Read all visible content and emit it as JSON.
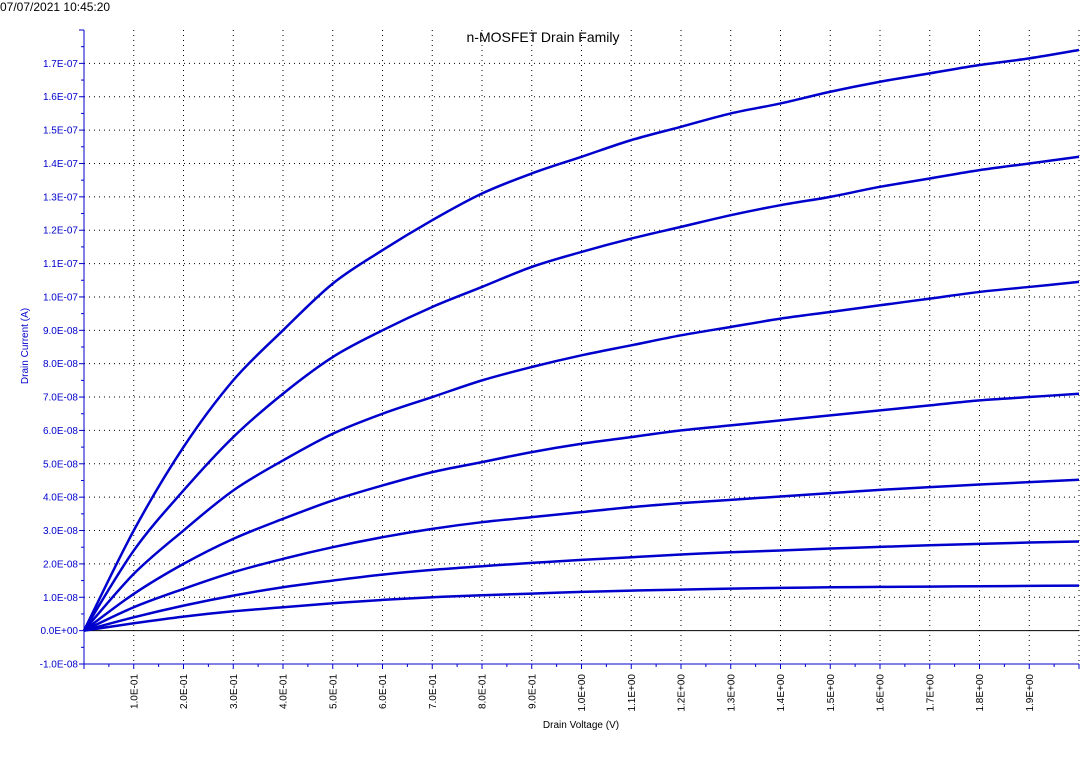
{
  "timestamp": "07/07/2021 10:45:20",
  "chart_data": {
    "type": "line",
    "title": "n-MOSFET Drain Family",
    "xlabel": "Drain Voltage (V)",
    "ylabel": "Drain Current (A)",
    "xlim": [
      0,
      2.0
    ],
    "ylim": [
      -1e-08,
      1.8e-07
    ],
    "grid": true,
    "line_color": "#0000cc",
    "axis_color": "#0000cc",
    "x_ticks": [
      {
        "value": 0.1,
        "label": "1.0E-01"
      },
      {
        "value": 0.2,
        "label": "2.0E-01"
      },
      {
        "value": 0.3,
        "label": "3.0E-01"
      },
      {
        "value": 0.4,
        "label": "4.0E-01"
      },
      {
        "value": 0.5,
        "label": "5.0E-01"
      },
      {
        "value": 0.6,
        "label": "6.0E-01"
      },
      {
        "value": 0.7,
        "label": "7.0E-01"
      },
      {
        "value": 0.8,
        "label": "8.0E-01"
      },
      {
        "value": 0.9,
        "label": "9.0E-01"
      },
      {
        "value": 1.0,
        "label": "1.0E+00"
      },
      {
        "value": 1.1,
        "label": "1.1E+00"
      },
      {
        "value": 1.2,
        "label": "1.2E+00"
      },
      {
        "value": 1.3,
        "label": "1.3E+00"
      },
      {
        "value": 1.4,
        "label": "1.4E+00"
      },
      {
        "value": 1.5,
        "label": "1.5E+00"
      },
      {
        "value": 1.6,
        "label": "1.6E+00"
      },
      {
        "value": 1.7,
        "label": "1.7E+00"
      },
      {
        "value": 1.8,
        "label": "1.8E+00"
      },
      {
        "value": 1.9,
        "label": "1.9E+00"
      }
    ],
    "y_ticks": [
      {
        "value": -1e-08,
        "label": "-1.0E-08"
      },
      {
        "value": 0,
        "label": "0.0E+00"
      },
      {
        "value": 1e-08,
        "label": "1.0E-08"
      },
      {
        "value": 2e-08,
        "label": "2.0E-08"
      },
      {
        "value": 3e-08,
        "label": "3.0E-08"
      },
      {
        "value": 4e-08,
        "label": "4.0E-08"
      },
      {
        "value": 5e-08,
        "label": "5.0E-08"
      },
      {
        "value": 6e-08,
        "label": "6.0E-08"
      },
      {
        "value": 7e-08,
        "label": "7.0E-08"
      },
      {
        "value": 8e-08,
        "label": "8.0E-08"
      },
      {
        "value": 9e-08,
        "label": "9.0E-08"
      },
      {
        "value": 1e-07,
        "label": "1.0E-07"
      },
      {
        "value": 1.1e-07,
        "label": "1.1E-07"
      },
      {
        "value": 1.2e-07,
        "label": "1.2E-07"
      },
      {
        "value": 1.3e-07,
        "label": "1.3E-07"
      },
      {
        "value": 1.4e-07,
        "label": "1.4E-07"
      },
      {
        "value": 1.5e-07,
        "label": "1.5E-07"
      },
      {
        "value": 1.6e-07,
        "label": "1.6E-07"
      },
      {
        "value": 1.7e-07,
        "label": "1.7E-07"
      }
    ],
    "x": [
      0,
      0.1,
      0.2,
      0.3,
      0.4,
      0.5,
      0.6,
      0.7,
      0.8,
      0.9,
      1.0,
      1.1,
      1.2,
      1.3,
      1.4,
      1.5,
      1.6,
      1.7,
      1.8,
      1.9,
      2.0
    ],
    "series": [
      {
        "values": [
          0,
          3e-08,
          5.5e-08,
          7.5e-08,
          9e-08,
          1.04e-07,
          1.14e-07,
          1.23e-07,
          1.31e-07,
          1.37e-07,
          1.42e-07,
          1.47e-07,
          1.51e-07,
          1.55e-07,
          1.58e-07,
          1.615e-07,
          1.645e-07,
          1.67e-07,
          1.695e-07,
          1.715e-07,
          1.74e-07
        ]
      },
      {
        "values": [
          0,
          2.4e-08,
          4.2e-08,
          5.8e-08,
          7.1e-08,
          8.2e-08,
          9e-08,
          9.7e-08,
          1.03e-07,
          1.09e-07,
          1.135e-07,
          1.175e-07,
          1.21e-07,
          1.245e-07,
          1.275e-07,
          1.3e-07,
          1.33e-07,
          1.355e-07,
          1.38e-07,
          1.4e-07,
          1.42e-07
        ]
      },
      {
        "values": [
          0,
          1.7e-08,
          3e-08,
          4.2e-08,
          5.1e-08,
          5.9e-08,
          6.5e-08,
          7e-08,
          7.5e-08,
          7.9e-08,
          8.25e-08,
          8.55e-08,
          8.85e-08,
          9.1e-08,
          9.35e-08,
          9.55e-08,
          9.75e-08,
          9.95e-08,
          1.015e-07,
          1.03e-07,
          1.045e-07
        ]
      },
      {
        "values": [
          0,
          1.1e-08,
          2e-08,
          2.75e-08,
          3.35e-08,
          3.9e-08,
          4.35e-08,
          4.75e-08,
          5.05e-08,
          5.35e-08,
          5.6e-08,
          5.8e-08,
          6e-08,
          6.15e-08,
          6.3e-08,
          6.45e-08,
          6.6e-08,
          6.75e-08,
          6.9e-08,
          7e-08,
          7.1e-08
        ]
      },
      {
        "values": [
          0,
          7e-09,
          1.25e-08,
          1.75e-08,
          2.15e-08,
          2.5e-08,
          2.8e-08,
          3.05e-08,
          3.25e-08,
          3.4e-08,
          3.55e-08,
          3.7e-08,
          3.82e-08,
          3.92e-08,
          4.02e-08,
          4.12e-08,
          4.22e-08,
          4.3e-08,
          4.38e-08,
          4.45e-08,
          4.52e-08
        ]
      },
      {
        "values": [
          0,
          4e-09,
          7.5e-09,
          1.05e-08,
          1.3e-08,
          1.5e-08,
          1.68e-08,
          1.82e-08,
          1.93e-08,
          2.03e-08,
          2.12e-08,
          2.2e-08,
          2.28e-08,
          2.35e-08,
          2.4e-08,
          2.46e-08,
          2.51e-08,
          2.56e-08,
          2.6e-08,
          2.64e-08,
          2.67e-08
        ]
      },
      {
        "values": [
          0,
          2.2e-09,
          4.2e-09,
          5.8e-09,
          7e-09,
          8.2e-09,
          9.2e-09,
          1e-08,
          1.06e-08,
          1.11e-08,
          1.16e-08,
          1.2e-08,
          1.23e-08,
          1.26e-08,
          1.28e-08,
          1.3e-08,
          1.31e-08,
          1.32e-08,
          1.33e-08,
          1.34e-08,
          1.35e-08
        ]
      }
    ]
  }
}
